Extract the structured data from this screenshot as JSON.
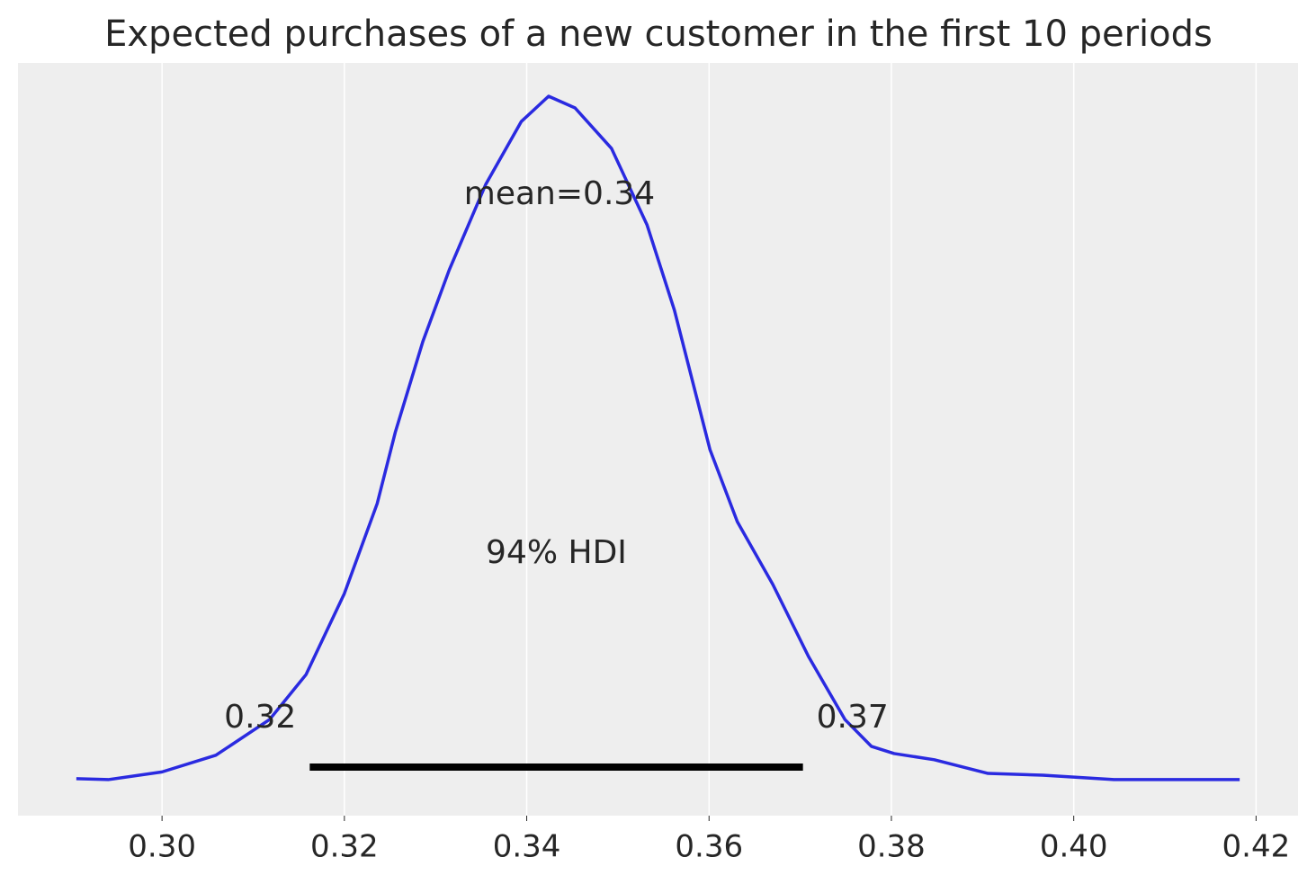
{
  "chart_data": {
    "type": "density",
    "title": "Expected purchases of a new customer in the first 10 periods",
    "color": "#2a2ae0",
    "x": [
      0.2906,
      0.2941,
      0.3,
      0.3059,
      0.3118,
      0.3158,
      0.32,
      0.3236,
      0.3256,
      0.3286,
      0.3315,
      0.3355,
      0.3394,
      0.3424,
      0.3453,
      0.3493,
      0.3532,
      0.3562,
      0.3601,
      0.3631,
      0.367,
      0.3709,
      0.3749,
      0.3778,
      0.3803,
      0.3847,
      0.3906,
      0.3966,
      0.4044,
      0.4103,
      0.4182
    ],
    "values": [
      0.04,
      0,
      0.31,
      0.98,
      2.42,
      4.23,
      7.49,
      11.11,
      14.0,
      17.62,
      20.51,
      23.95,
      26.48,
      27.5,
      27.03,
      25.4,
      22.32,
      18.89,
      13.28,
      10.38,
      7.85,
      4.96,
      2.42,
      1.34,
      1.05,
      0.8,
      0.25,
      0.18,
      0,
      0,
      0
    ],
    "xlim": [
      0.2842,
      0.4246
    ],
    "ylim": [
      -1.45,
      28.84
    ],
    "xticks": [
      {
        "value": 0.3,
        "label": "0.30"
      },
      0.32,
      0.34,
      0.36,
      0.38,
      {
        "value": 0.4,
        "label": "0.40"
      },
      0.42
    ],
    "grid": true,
    "mean_label": "mean=0.34",
    "hdi_label": "94% HDI",
    "hdi": [
      0.3162,
      0.3703
    ],
    "hdi_labels": [
      "0.32",
      "0.37"
    ]
  }
}
